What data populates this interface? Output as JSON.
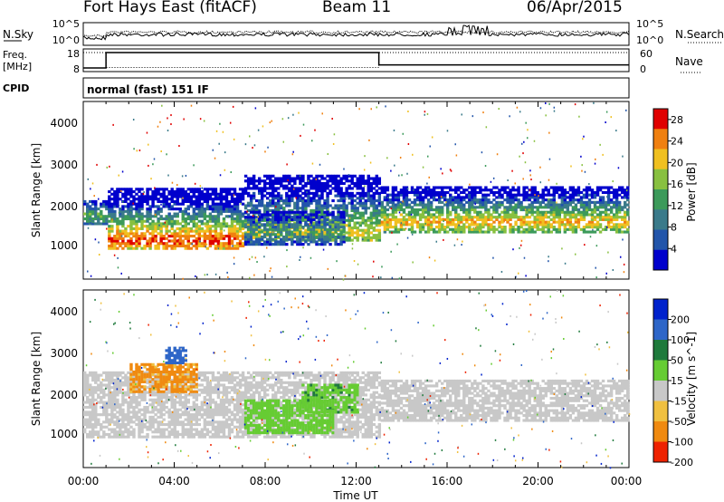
{
  "header": {
    "station": "Fort Hays East (fitACF)",
    "beam": "Beam 11",
    "date": "06/Apr/2015"
  },
  "strip_labels": {
    "nsky": "N.Sky",
    "nsearch": "N.Search",
    "freq_line1": "Freq.",
    "freq_line2": "[MHz]",
    "nave": "Nave",
    "cpid": "CPID",
    "cpid_value": "normal (fast) 151 IF"
  },
  "strip_axes": {
    "noise_left_top": "10^5",
    "noise_left_bottom": "10^0",
    "noise_right_top": "10^5",
    "noise_right_bottom": "10^0",
    "freq_left_top": "18",
    "freq_left_bottom": "8",
    "nave_right_top": "60",
    "nave_right_bottom": "0"
  },
  "strip_data": {
    "frequency_mhz": {
      "x": [
        0,
        1,
        1,
        13,
        13,
        24
      ],
      "y": [
        8,
        8,
        18,
        18,
        10,
        10
      ]
    },
    "nave": {
      "x": [
        0,
        1,
        1,
        13,
        13,
        24
      ],
      "y": [
        60,
        60,
        5,
        5,
        60,
        60
      ]
    }
  },
  "x_axis": {
    "ticks": [
      "00:00",
      "04:00",
      "08:00",
      "12:00",
      "16:00",
      "20:00",
      "00:00"
    ],
    "label": "Time UT"
  },
  "chart_data": [
    {
      "type": "heatmap",
      "quantity": "power",
      "ylabel": "Slant Range [km]",
      "yticks": [
        "1000",
        "2000",
        "3000",
        "4000"
      ],
      "ylim": [
        180,
        4500
      ],
      "xlim_hours": [
        0,
        24
      ],
      "colorbar_label": "Power [dB]",
      "colorbar_ticks": [
        "4",
        "8",
        "12",
        "16",
        "20",
        "24",
        "28"
      ],
      "colorbar_range": [
        0,
        30
      ],
      "colors": [
        "#0000cc",
        "#2255aa",
        "#3a7a8a",
        "#3c9a5a",
        "#88c040",
        "#f0c020",
        "#f08010",
        "#e00000"
      ],
      "bands": [
        {
          "t": [
            1.0,
            7.0
          ],
          "r": [
            900,
            2400
          ],
          "peak": 1100,
          "level": 27
        },
        {
          "t": [
            7.0,
            13.0
          ],
          "r": [
            1100,
            2700
          ],
          "peak": 1300,
          "level": 20
        },
        {
          "t": [
            13.0,
            24.0
          ],
          "r": [
            1300,
            2400
          ],
          "peak": 1550,
          "level": 22
        },
        {
          "t": [
            0.0,
            1.0
          ],
          "r": [
            1500,
            2100
          ],
          "peak": 1700,
          "level": 15
        },
        {
          "t": [
            7.0,
            11.5
          ],
          "r": [
            1000,
            1800
          ],
          "peak": 1300,
          "level": 12
        }
      ]
    },
    {
      "type": "heatmap",
      "quantity": "velocity",
      "ylabel": "Slant Range [km]",
      "yticks": [
        "1000",
        "2000",
        "3000",
        "4000"
      ],
      "ylim": [
        180,
        4500
      ],
      "xlim_hours": [
        0,
        24
      ],
      "colorbar_label": "Velocity [m s^-1]",
      "colorbar_ticks": [
        "200",
        "100",
        "50",
        "15",
        "-15",
        "-50",
        "-100",
        "-200"
      ],
      "colorbar_range": [
        -250,
        250
      ],
      "colors": [
        "#0022cc",
        "#2e66c8",
        "#1f7a3c",
        "#66cc33",
        "#c8c8c8",
        "#f0c040",
        "#f08a10",
        "#ee2200"
      ],
      "bands": [
        {
          "t": [
            0.0,
            13.0
          ],
          "r": [
            900,
            2500
          ],
          "v": 0
        },
        {
          "t": [
            13.0,
            24.0
          ],
          "r": [
            1300,
            2300
          ],
          "v": 0
        },
        {
          "t": [
            2.0,
            5.0
          ],
          "r": [
            2000,
            2700
          ],
          "v": -60
        },
        {
          "t": [
            3.5,
            4.5
          ],
          "r": [
            2700,
            3100
          ],
          "v": 150
        },
        {
          "t": [
            9.5,
            12.0
          ],
          "r": [
            1500,
            2200
          ],
          "v": 40
        },
        {
          "t": [
            7.0,
            11.0
          ],
          "r": [
            1000,
            1800
          ],
          "v": 30
        }
      ]
    }
  ]
}
